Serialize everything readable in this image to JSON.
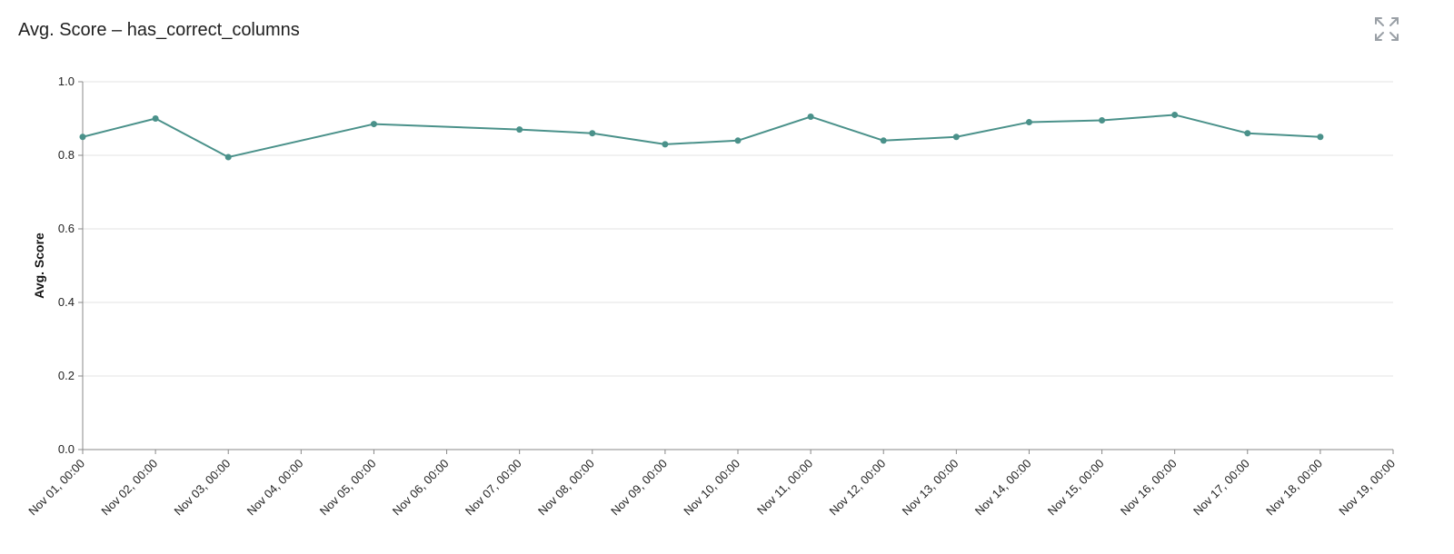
{
  "panel": {
    "title": "Avg. Score – has_correct_columns"
  },
  "icons": {
    "expand": "expand-icon"
  },
  "colors": {
    "line": "#4a918a",
    "grid": "#e3e3e3",
    "axis": "#888888"
  },
  "chart_data": {
    "type": "line",
    "title": "Avg. Score – has_correct_columns",
    "xlabel": "",
    "ylabel": "Avg. Score",
    "ylim": [
      0,
      1
    ],
    "yticks": [
      "0.0",
      "0.2",
      "0.4",
      "0.6",
      "0.8",
      "1.0"
    ],
    "xticks": [
      "Nov 01, 00:00",
      "Nov 02, 00:00",
      "Nov 03, 00:00",
      "Nov 04, 00:00",
      "Nov 05, 00:00",
      "Nov 06, 00:00",
      "Nov 07, 00:00",
      "Nov 08, 00:00",
      "Nov 09, 00:00",
      "Nov 10, 00:00",
      "Nov 11, 00:00",
      "Nov 12, 00:00",
      "Nov 13, 00:00",
      "Nov 14, 00:00",
      "Nov 15, 00:00",
      "Nov 16, 00:00",
      "Nov 17, 00:00",
      "Nov 18, 00:00",
      "Nov 19, 00:00"
    ],
    "grid": true,
    "series": [
      {
        "points": [
          {
            "x": "Nov 01, 00:00",
            "y": 0.85
          },
          {
            "x": "Nov 02, 00:00",
            "y": 0.9
          },
          {
            "x": "Nov 03, 00:00",
            "y": 0.795
          },
          {
            "x": "Nov 05, 00:00",
            "y": 0.885
          },
          {
            "x": "Nov 07, 00:00",
            "y": 0.87
          },
          {
            "x": "Nov 08, 00:00",
            "y": 0.86
          },
          {
            "x": "Nov 09, 00:00",
            "y": 0.83
          },
          {
            "x": "Nov 10, 00:00",
            "y": 0.84
          },
          {
            "x": "Nov 11, 00:00",
            "y": 0.905
          },
          {
            "x": "Nov 12, 00:00",
            "y": 0.84
          },
          {
            "x": "Nov 13, 00:00",
            "y": 0.85
          },
          {
            "x": "Nov 14, 00:00",
            "y": 0.89
          },
          {
            "x": "Nov 15, 00:00",
            "y": 0.895
          },
          {
            "x": "Nov 16, 00:00",
            "y": 0.91
          },
          {
            "x": "Nov 17, 00:00",
            "y": 0.86
          },
          {
            "x": "Nov 18, 00:00",
            "y": 0.85
          }
        ]
      }
    ]
  }
}
